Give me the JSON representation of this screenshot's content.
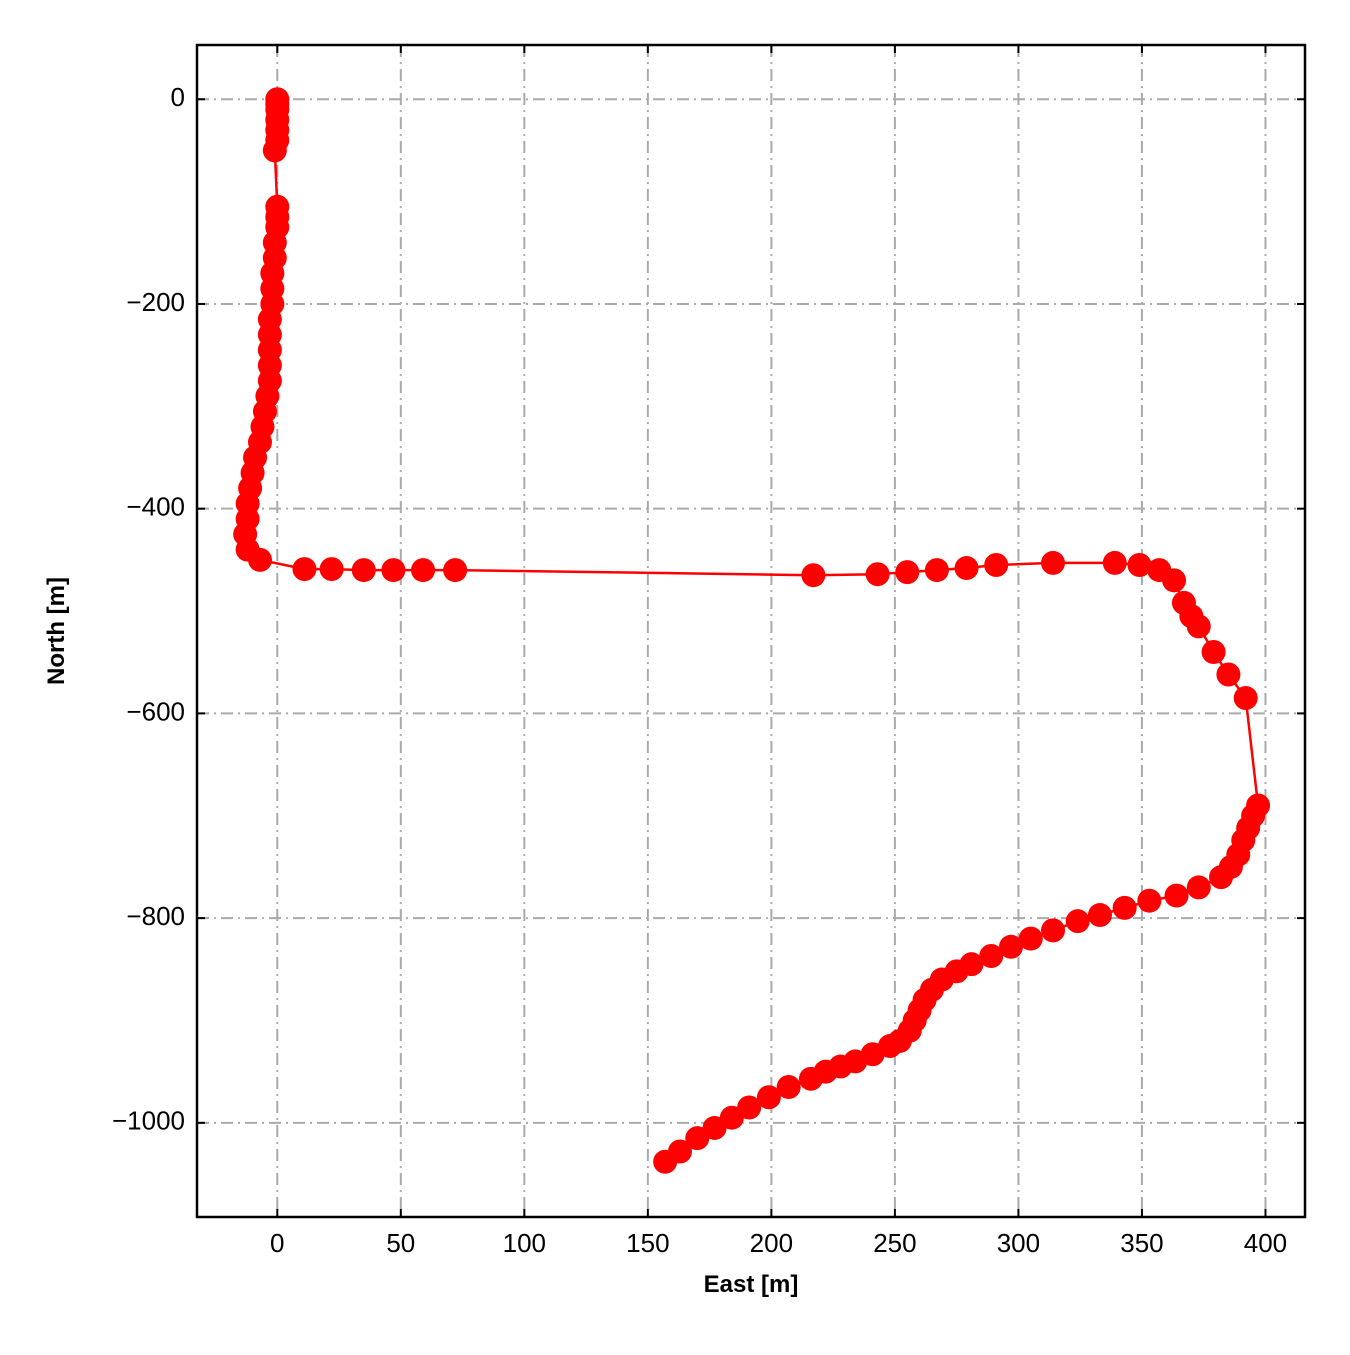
{
  "chart_data": {
    "type": "line",
    "xlabel": "East [m]",
    "ylabel": "North [m]",
    "color": "#ff0000",
    "grid": true,
    "xlim": [
      -32.5,
      416
    ],
    "ylim": [
      -1092,
      53
    ],
    "xticks": [
      0,
      50,
      100,
      150,
      200,
      250,
      300,
      350,
      400
    ],
    "yticks": [
      0,
      {
        "value": -200,
        "label": "−200"
      },
      {
        "value": -400,
        "label": "−400"
      },
      {
        "value": -600,
        "label": "−600"
      },
      {
        "value": -800,
        "label": "−800"
      },
      {
        "value": -1000,
        "label": "−1000"
      }
    ],
    "x": [
      0,
      0,
      0,
      0,
      0,
      0,
      -1,
      0,
      0,
      0,
      -1,
      -1,
      -2,
      -2,
      -2,
      -3,
      -3,
      -3,
      -3,
      -3,
      -4,
      -5,
      -6,
      -7,
      -9,
      -10,
      -11,
      -12,
      -12,
      -13,
      -12,
      -7,
      11,
      22,
      35,
      47,
      59,
      72,
      217,
      243,
      255,
      267,
      279,
      291,
      314,
      339,
      349,
      357,
      363,
      367,
      370,
      373,
      379,
      385,
      392,
      397,
      395,
      393,
      391,
      389,
      386,
      382,
      373,
      364,
      353,
      343,
      333,
      324,
      314,
      305,
      297,
      289,
      281,
      275,
      269,
      265,
      262,
      260,
      258,
      256,
      252,
      248,
      241,
      234,
      228,
      222,
      216,
      207,
      199,
      191,
      184,
      177,
      170,
      163,
      157
    ],
    "values": [
      0,
      -5,
      -10,
      -20,
      -30,
      -40,
      -50,
      -105,
      -115,
      -125,
      -140,
      -155,
      -170,
      -185,
      -200,
      -215,
      -230,
      -245,
      -260,
      -275,
      -290,
      -305,
      -320,
      -335,
      -350,
      -365,
      -380,
      -395,
      -410,
      -425,
      -440,
      -450,
      -459,
      -459,
      -460,
      -460,
      -460,
      -460,
      -465,
      -464,
      -462,
      -460,
      -458,
      -455,
      -453,
      -453,
      -455,
      -460,
      -470,
      -492,
      -505,
      -515,
      -540,
      -562,
      -585,
      -690,
      -700,
      -712,
      -724,
      -738,
      -750,
      -760,
      -770,
      -778,
      -783,
      -790,
      -797,
      -803,
      -812,
      -820,
      -828,
      -837,
      -845,
      -852,
      -860,
      -870,
      -880,
      -890,
      -900,
      -910,
      -920,
      -925,
      -933,
      -940,
      -945,
      -950,
      -957,
      -965,
      -975,
      -985,
      -995,
      -1005,
      -1015,
      -1028,
      -1038
    ]
  }
}
